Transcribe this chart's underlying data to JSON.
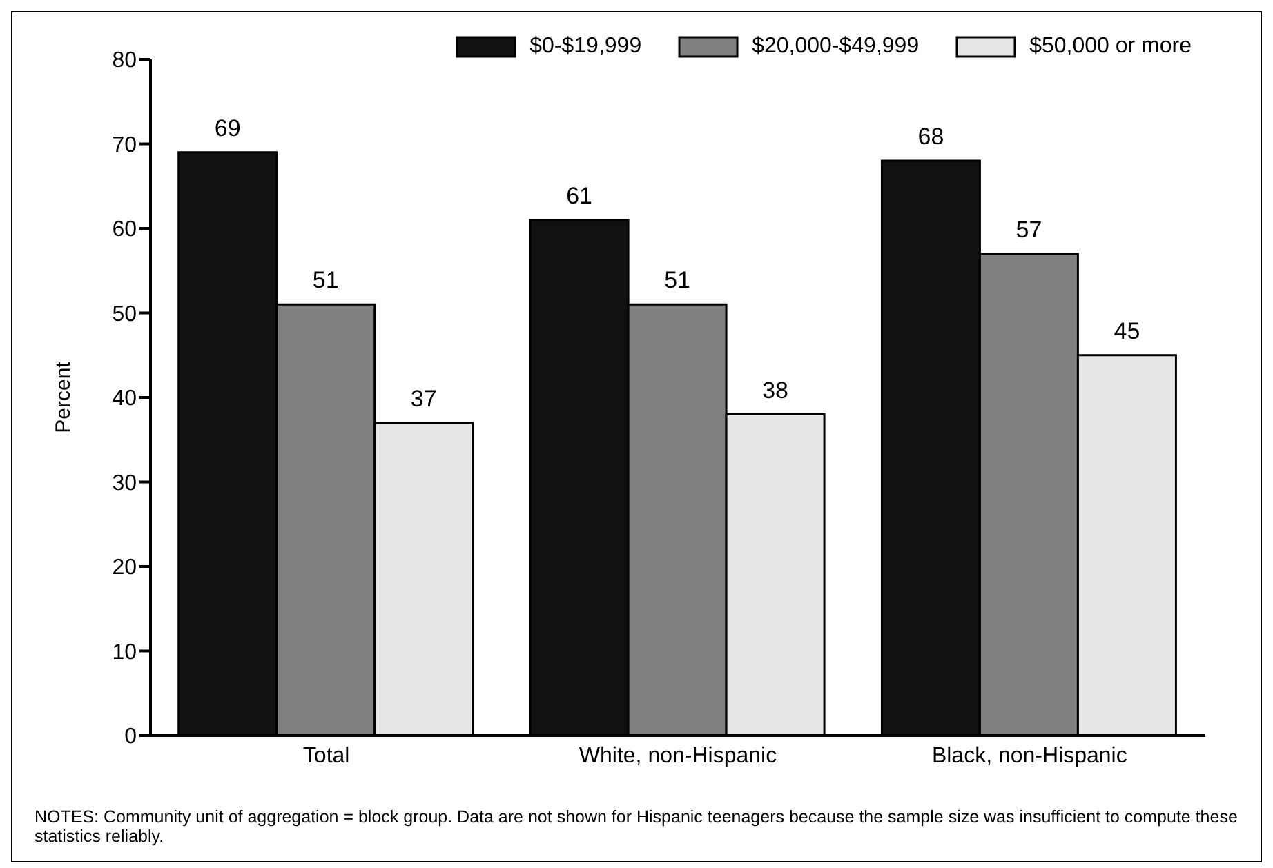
{
  "chart_data": {
    "type": "bar",
    "ylabel": "Percent",
    "categories": [
      "Total",
      "White, non-Hispanic",
      "Black, non-Hispanic"
    ],
    "series": [
      {
        "name": "$0-$19,999",
        "color": "#111111",
        "values": [
          69,
          61,
          68
        ]
      },
      {
        "name": "$20,000-$49,999",
        "color": "#808080",
        "values": [
          51,
          51,
          57
        ]
      },
      {
        "name": "$50,000 or more",
        "color": "#e6e6e6",
        "values": [
          37,
          38,
          45
        ]
      }
    ],
    "ylim": [
      0,
      80
    ],
    "yticks": [
      0,
      10,
      20,
      30,
      40,
      50,
      60,
      70,
      80
    ],
    "grid": false,
    "legend": "top right",
    "data_labels": true,
    "annotations": [
      "NOTES: Community unit of aggregation  = block group. Data are not shown for Hispanic teenagers because the sample size was insufficient to compute these statistics reliably."
    ]
  }
}
